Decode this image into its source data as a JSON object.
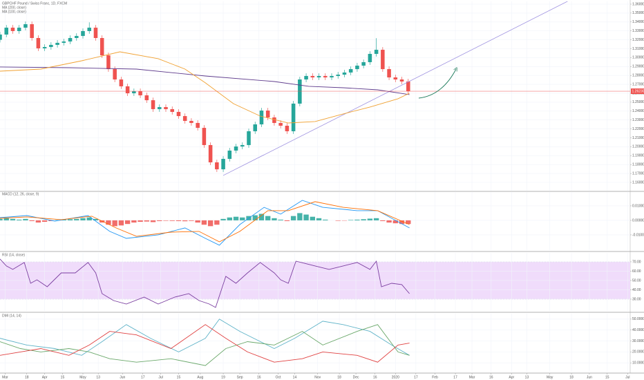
{
  "chart_data": [
    {
      "type": "candlestick",
      "title": "GBPCHF Pound / Swiss Franc, 1D, FXCM",
      "up_color": "#26a69a",
      "down_color": "#ef5350",
      "xlim": [
        -4,
        490
      ],
      "xticks": [
        {
          "value": 0,
          "label": "Mar"
        },
        {
          "value": 17,
          "label": "18"
        },
        {
          "value": 31,
          "label": "Apr"
        },
        {
          "value": 45,
          "label": "15"
        },
        {
          "value": 61,
          "label": "May"
        },
        {
          "value": 73,
          "label": "13"
        },
        {
          "value": 92,
          "label": "Jun"
        },
        {
          "value": 108,
          "label": "17"
        },
        {
          "value": 122,
          "label": "Jul"
        },
        {
          "value": 136,
          "label": "15"
        },
        {
          "value": 153,
          "label": "Aug"
        },
        {
          "value": 171,
          "label": "19"
        },
        {
          "value": 184,
          "label": "Sep"
        },
        {
          "value": 199,
          "label": "16"
        },
        {
          "value": 214,
          "label": "Oct"
        },
        {
          "value": 227,
          "label": "14"
        },
        {
          "value": 245,
          "label": "Nov"
        },
        {
          "value": 262,
          "label": "18"
        },
        {
          "value": 275,
          "label": "Dec"
        },
        {
          "value": 290,
          "label": "16"
        },
        {
          "value": 306,
          "label": "2020"
        },
        {
          "value": 322,
          "label": "17"
        },
        {
          "value": 337,
          "label": "Feb"
        },
        {
          "value": 353,
          "label": "17"
        },
        {
          "value": 366,
          "label": "Mar"
        },
        {
          "value": 381,
          "label": "16"
        },
        {
          "value": 397,
          "label": "Apr"
        },
        {
          "value": 409,
          "label": "13"
        },
        {
          "value": 427,
          "label": "May"
        },
        {
          "value": 444,
          "label": "18"
        },
        {
          "value": 458,
          "label": "Jun"
        },
        {
          "value": 472,
          "label": "15"
        },
        {
          "value": 488,
          "label": "Jul"
        }
      ],
      "ylim": [
        1.1507,
        1.3631
      ],
      "yticks": [
        {
          "value": 1.36,
          "label": "1.36000"
        },
        {
          "value": 1.35,
          "label": "1.35000"
        },
        {
          "value": 1.34,
          "label": "1.34000"
        },
        {
          "value": 1.33,
          "label": "1.33000"
        },
        {
          "value": 1.32,
          "label": "1.32000"
        },
        {
          "value": 1.31,
          "label": "1.31000"
        },
        {
          "value": 1.3,
          "label": "1.30000"
        },
        {
          "value": 1.29,
          "label": "1.29000"
        },
        {
          "value": 1.28,
          "label": "1.28000"
        },
        {
          "value": 1.27,
          "label": "1.27000"
        },
        {
          "value": 1.26,
          "label": "1.26000"
        },
        {
          "value": 1.25,
          "label": "1.25000"
        },
        {
          "value": 1.24,
          "label": "1.24000"
        },
        {
          "value": 1.23,
          "label": "1.23000"
        },
        {
          "value": 1.22,
          "label": "1.22000"
        },
        {
          "value": 1.21,
          "label": "1.21000"
        },
        {
          "value": 1.2,
          "label": "1.20000"
        },
        {
          "value": 1.19,
          "label": "1.19000"
        },
        {
          "value": 1.18,
          "label": "1.18000"
        },
        {
          "value": 1.17,
          "label": "1.17000"
        },
        {
          "value": 1.16,
          "label": "1.16000"
        }
      ],
      "x": [
        -4,
        1,
        6,
        11,
        16,
        21,
        26,
        31,
        36,
        41,
        46,
        51,
        56,
        61,
        66,
        71,
        76,
        81,
        86,
        91,
        96,
        101,
        106,
        111,
        116,
        121,
        126,
        131,
        136,
        141,
        146,
        151,
        156,
        161,
        166,
        171,
        176,
        181,
        186,
        191,
        196,
        201,
        206,
        211,
        216,
        221,
        226,
        231,
        236,
        241,
        246,
        251,
        256,
        261,
        266,
        271,
        276,
        281,
        286,
        291,
        296,
        301,
        306,
        311,
        316
      ],
      "open": [
        1.32,
        1.3259,
        1.3336,
        1.3298,
        1.3336,
        1.3375,
        1.322,
        1.3104,
        1.3119,
        1.3143,
        1.3166,
        1.3181,
        1.322,
        1.3243,
        1.3298,
        1.3336,
        1.322,
        1.3026,
        1.2871,
        1.2755,
        1.2678,
        1.26,
        1.2623,
        1.2577,
        1.2522,
        1.2422,
        1.2445,
        1.2422,
        1.2391,
        1.2344,
        1.229,
        1.2267,
        1.2212,
        1.2019,
        1.1825,
        1.1747,
        1.1864,
        1.1957,
        1.2003,
        1.2019,
        1.2174,
        1.2251,
        1.2406,
        1.2329,
        1.2267,
        1.2236,
        1.2174,
        1.2484,
        1.2755,
        1.2794,
        1.2778,
        1.2794,
        1.2778,
        1.2794,
        1.2809,
        1.2833,
        1.2871,
        1.291,
        1.2949,
        1.3042,
        1.3088,
        1.2871,
        1.2778,
        1.2755,
        1.2732
      ],
      "high": [
        1.3289,
        1.3366,
        1.3366,
        1.3366,
        1.3405,
        1.3405,
        1.325,
        1.3149,
        1.3173,
        1.3196,
        1.3211,
        1.325,
        1.3273,
        1.3328,
        1.3396,
        1.3366,
        1.325,
        1.3056,
        1.2901,
        1.2785,
        1.2708,
        1.2653,
        1.2653,
        1.2607,
        1.2552,
        1.2475,
        1.2475,
        1.2452,
        1.2421,
        1.2374,
        1.232,
        1.2297,
        1.2242,
        1.2049,
        1.1855,
        1.1894,
        1.1987,
        1.2033,
        1.2049,
        1.2204,
        1.2281,
        1.2436,
        1.2436,
        1.2359,
        1.2297,
        1.2266,
        1.2514,
        1.2785,
        1.2824,
        1.2824,
        1.2824,
        1.2824,
        1.2824,
        1.2839,
        1.2863,
        1.2901,
        1.294,
        1.2979,
        1.3072,
        1.3218,
        1.3118,
        1.2901,
        1.2808,
        1.2785,
        1.2762
      ],
      "low": [
        1.317,
        1.3229,
        1.3268,
        1.3268,
        1.3306,
        1.319,
        1.3074,
        1.3074,
        1.3089,
        1.3113,
        1.3136,
        1.3151,
        1.319,
        1.3213,
        1.3268,
        1.319,
        1.2996,
        1.2841,
        1.2725,
        1.2648,
        1.257,
        1.257,
        1.2547,
        1.2492,
        1.2392,
        1.2392,
        1.2392,
        1.2361,
        1.2314,
        1.226,
        1.2237,
        1.2182,
        1.1989,
        1.1795,
        1.1717,
        1.1717,
        1.1834,
        1.1927,
        1.1973,
        1.1989,
        1.2144,
        1.2221,
        1.2299,
        1.2237,
        1.2206,
        1.2144,
        1.2144,
        1.2454,
        1.2725,
        1.2748,
        1.2748,
        1.2748,
        1.2748,
        1.2764,
        1.2779,
        1.2803,
        1.2841,
        1.288,
        1.2919,
        1.3012,
        1.2841,
        1.2748,
        1.2725,
        1.2702,
        1.2593
      ],
      "close": [
        1.3259,
        1.3336,
        1.3298,
        1.3336,
        1.3375,
        1.322,
        1.3104,
        1.3119,
        1.3143,
        1.3166,
        1.3181,
        1.322,
        1.3243,
        1.3298,
        1.3336,
        1.322,
        1.3026,
        1.2871,
        1.2755,
        1.2678,
        1.26,
        1.2623,
        1.2577,
        1.2522,
        1.2422,
        1.2445,
        1.2422,
        1.2391,
        1.2344,
        1.229,
        1.2267,
        1.2212,
        1.2019,
        1.1825,
        1.1747,
        1.1864,
        1.1957,
        1.2003,
        1.2019,
        1.2174,
        1.2251,
        1.2406,
        1.2329,
        1.2267,
        1.2236,
        1.2174,
        1.2484,
        1.2755,
        1.2794,
        1.2778,
        1.2794,
        1.2778,
        1.2794,
        1.2809,
        1.2833,
        1.2871,
        1.291,
        1.2949,
        1.3042,
        1.3088,
        1.2871,
        1.2778,
        1.2755,
        1.2732,
        1.2623
      ],
      "series": [
        {
          "name": "MA (200, close)",
          "color": "#5e3b8c",
          "x": [
            -4,
            50,
            103,
            157,
            211,
            238,
            265,
            292,
            317
          ],
          "values": [
            1.2895,
            1.2887,
            1.2871,
            1.2794,
            1.2732,
            1.2678,
            1.2662,
            1.2639,
            1.2585
          ]
        },
        {
          "name": "MA (100, close)",
          "color": "#f0a030",
          "x": [
            -4,
            28,
            60,
            90,
            120,
            141,
            157,
            179,
            200,
            222,
            243,
            265,
            286,
            308,
            317
          ],
          "values": [
            1.2848,
            1.2871,
            1.2964,
            1.3065,
            1.2988,
            1.2871,
            1.2717,
            1.2484,
            1.2344,
            1.2267,
            1.2283,
            1.2368,
            1.2446,
            1.2539,
            1.2601
          ]
        }
      ],
      "trendline": {
        "color": "#9d90e0",
        "x": [
          171,
          443
        ],
        "values": [
          1.1678,
          1.3647
        ]
      },
      "last_price": {
        "value": 1.2623,
        "label": "1.26230",
        "color": "#ef5350"
      }
    },
    {
      "type": "bar",
      "title": "MACD (12, 26, close, 9)",
      "up_color": "#26a69a",
      "down_color": "#ef5350",
      "ylim": [
        -0.0205,
        0.0195
      ],
      "yticks": [
        {
          "value": 0.01,
          "label": "0.01000"
        },
        {
          "value": 0,
          "label": "0.00000"
        },
        {
          "value": -0.01,
          "label": "-0.01000"
        }
      ],
      "x": [
        -4,
        1,
        6,
        11,
        16,
        21,
        26,
        31,
        36,
        41,
        46,
        51,
        56,
        61,
        66,
        71,
        76,
        81,
        86,
        91,
        96,
        101,
        106,
        111,
        116,
        121,
        126,
        131,
        136,
        141,
        146,
        151,
        156,
        161,
        166,
        171,
        176,
        181,
        186,
        191,
        196,
        201,
        206,
        211,
        216,
        221,
        226,
        231,
        236,
        241,
        246,
        251,
        256,
        261,
        266,
        271,
        276,
        281,
        286,
        291,
        296,
        301,
        306,
        311,
        316
      ],
      "values": [
        0.001,
        0.0015,
        0.001,
        0.0005,
        0.001,
        -0.0005,
        -0.0015,
        -0.001,
        -0.0005,
        0.0002,
        0.0005,
        0.0008,
        0.001,
        0.0015,
        0.002,
        0.001,
        -0.0015,
        -0.003,
        -0.004,
        -0.0035,
        -0.0025,
        -0.0015,
        -0.001,
        -0.0008,
        -0.0012,
        -0.0005,
        -0.0003,
        -0.0004,
        -0.0005,
        -0.0006,
        -0.0004,
        -0.0015,
        -0.003,
        -0.004,
        -0.003,
        0.001,
        0.002,
        0.0025,
        0.002,
        0.003,
        0.0035,
        0.0045,
        0.003,
        0.0015,
        0.0005,
        -0.0005,
        0.003,
        0.005,
        0.004,
        0.0025,
        0.0015,
        0.0005,
        0,
        -0.0003,
        -0.0002,
        0.0003,
        0.0005,
        0.0008,
        0.0012,
        0.0015,
        -0.0005,
        -0.0015,
        -0.002,
        -0.0025,
        -0.0025
      ],
      "series": [
        {
          "color": "#2196f3",
          "x": [
            -4,
            17,
            39,
            65,
            82,
            95,
            120,
            141,
            157,
            168,
            184,
            203,
            216,
            233,
            249,
            276,
            292,
            317
          ],
          "values": [
            0.0019,
            0.0033,
            -0.0005,
            0.0033,
            -0.0076,
            -0.0124,
            -0.01,
            -0.0052,
            -0.0124,
            -0.0171,
            -0.0029,
            0.009,
            0.0043,
            0.0138,
            0.009,
            0.0067,
            0.0067,
            -0.0052
          ]
        },
        {
          "color": "#ff6d00",
          "x": [
            -4,
            17,
            44,
            68,
            87,
            103,
            130,
            152,
            168,
            184,
            206,
            222,
            243,
            265,
            292,
            317
          ],
          "values": [
            0.0014,
            0.0024,
            0.0005,
            0.0029,
            -0.0052,
            -0.011,
            -0.0081,
            -0.0076,
            -0.0148,
            -0.0076,
            0.0067,
            0.0067,
            0.0129,
            0.009,
            0.0067,
            -0.0029
          ]
        }
      ]
    },
    {
      "type": "line",
      "title": "RSI (14, close)",
      "ylim": [
        17.4,
        79.6
      ],
      "yticks": [
        {
          "value": 70,
          "label": "70.00"
        },
        {
          "value": 60,
          "label": "60.00"
        },
        {
          "value": 50,
          "label": "50.00"
        },
        {
          "value": 40,
          "label": "40.00"
        },
        {
          "value": 30,
          "label": "30.00"
        }
      ],
      "band": [
        30,
        70
      ],
      "band_color": "#f0dcfb",
      "series": [
        {
          "color": "#7b3fa0",
          "x": [
            -4,
            1,
            6,
            15,
            20,
            25,
            33,
            44,
            55,
            65,
            71,
            76,
            85,
            95,
            109,
            120,
            133,
            144,
            152,
            160,
            165,
            173,
            181,
            190,
            200,
            211,
            216,
            222,
            228,
            243,
            254,
            265,
            276,
            286,
            291,
            295,
            303,
            311,
            317
          ],
          "values": [
            73,
            65.6,
            61.9,
            69.3,
            47,
            50.7,
            43.3,
            58.1,
            58.1,
            69.3,
            58.1,
            35.9,
            28.5,
            24.8,
            32.2,
            24.8,
            32.2,
            35.9,
            28.5,
            24.8,
            21.1,
            54.4,
            47,
            58.1,
            69.3,
            58.1,
            50.7,
            47,
            70.7,
            65.6,
            61.9,
            65.6,
            69.3,
            61.9,
            70.7,
            43.3,
            47,
            45.6,
            35.9
          ]
        }
      ]
    },
    {
      "type": "line",
      "title": "DMI (14, 14)",
      "ylim": [
        1.9,
        55
      ],
      "yticks": [
        {
          "value": 50,
          "label": "50.0000"
        },
        {
          "value": 40,
          "label": "40.0000"
        },
        {
          "value": 30,
          "label": "30.0000"
        },
        {
          "value": 20,
          "label": "20.0000"
        },
        {
          "value": 10,
          "label": "10.0000"
        }
      ],
      "series": [
        {
          "color": "#5fb3c8",
          "x": [
            -4,
            17,
            39,
            60,
            76,
            95,
            114,
            136,
            157,
            168,
            184,
            211,
            227,
            249,
            265,
            286,
            303,
            317
          ],
          "values": [
            32.5,
            26.3,
            23.1,
            16.9,
            29.4,
            45,
            32.5,
            20,
            32.5,
            50,
            38.8,
            23.1,
            32.5,
            48.1,
            45,
            38.8,
            26.3,
            16.9
          ]
        },
        {
          "color": "#6aa86a",
          "x": [
            -4,
            12,
            28,
            50,
            66,
            82,
            103,
            130,
            157,
            173,
            190,
            211,
            233,
            249,
            276,
            292,
            308,
            317
          ],
          "values": [
            29.4,
            23.1,
            20,
            23.1,
            20,
            13.8,
            10.6,
            13.8,
            7.5,
            23.1,
            29.4,
            26.3,
            38.8,
            26.3,
            38.8,
            45,
            20,
            16.9
          ]
        },
        {
          "color": "#e04040",
          "x": [
            -4,
            12,
            28,
            50,
            66,
            82,
            103,
            130,
            157,
            173,
            190,
            211,
            233,
            249,
            276,
            292,
            308,
            317
          ],
          "values": [
            16.9,
            20,
            23.1,
            16.9,
            26.3,
            38.8,
            35.6,
            23.1,
            45,
            32.5,
            20,
            10.6,
            13.8,
            20,
            16.9,
            10.6,
            26.3,
            28.1
          ]
        }
      ]
    }
  ]
}
